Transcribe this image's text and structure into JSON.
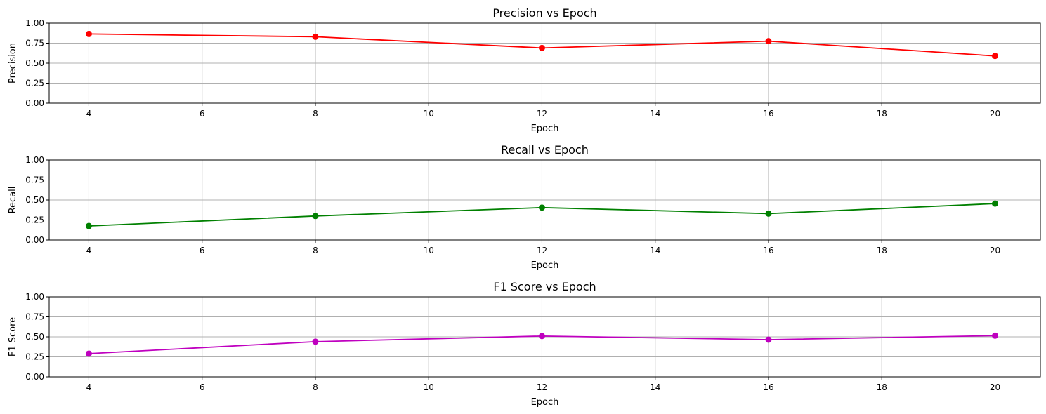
{
  "chart_data": [
    {
      "type": "line",
      "title": "Precision vs Epoch",
      "xlabel": "Epoch",
      "ylabel": "Precision",
      "x": [
        4,
        8,
        12,
        16,
        20
      ],
      "values": [
        0.865,
        0.83,
        0.69,
        0.775,
        0.59
      ],
      "xlim": [
        3.3,
        20.8
      ],
      "ylim": [
        0,
        1
      ],
      "xticks": [
        4,
        6,
        8,
        10,
        12,
        14,
        16,
        18,
        20
      ],
      "yticks": [
        0,
        0.25,
        0.5,
        0.75,
        1.0
      ],
      "ytick_labels": [
        "0.00",
        "0.25",
        "0.50",
        "0.75",
        "1.00"
      ],
      "color": "#ff0000",
      "grid": true
    },
    {
      "type": "line",
      "title": "Recall vs Epoch",
      "xlabel": "Epoch",
      "ylabel": "Recall",
      "x": [
        4,
        8,
        12,
        16,
        20
      ],
      "values": [
        0.175,
        0.3,
        0.405,
        0.33,
        0.455
      ],
      "xlim": [
        3.3,
        20.8
      ],
      "ylim": [
        0,
        1
      ],
      "xticks": [
        4,
        6,
        8,
        10,
        12,
        14,
        16,
        18,
        20
      ],
      "yticks": [
        0,
        0.25,
        0.5,
        0.75,
        1.0
      ],
      "ytick_labels": [
        "0.00",
        "0.25",
        "0.50",
        "0.75",
        "1.00"
      ],
      "color": "#008000",
      "grid": true
    },
    {
      "type": "line",
      "title": "F1 Score vs Epoch",
      "xlabel": "Epoch",
      "ylabel": "F1 Score",
      "x": [
        4,
        8,
        12,
        16,
        20
      ],
      "values": [
        0.29,
        0.44,
        0.51,
        0.465,
        0.515
      ],
      "xlim": [
        3.3,
        20.8
      ],
      "ylim": [
        0,
        1
      ],
      "xticks": [
        4,
        6,
        8,
        10,
        12,
        14,
        16,
        18,
        20
      ],
      "yticks": [
        0,
        0.25,
        0.5,
        0.75,
        1.0
      ],
      "ytick_labels": [
        "0.00",
        "0.25",
        "0.50",
        "0.75",
        "1.00"
      ],
      "color": "#bf00bf",
      "grid": true
    }
  ]
}
